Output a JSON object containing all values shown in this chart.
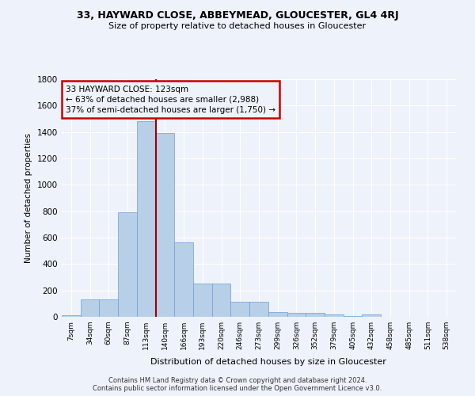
{
  "title1": "33, HAYWARD CLOSE, ABBEYMEAD, GLOUCESTER, GL4 4RJ",
  "title2": "Size of property relative to detached houses in Gloucester",
  "xlabel": "Distribution of detached houses by size in Gloucester",
  "ylabel": "Number of detached properties",
  "bins": [
    "7sqm",
    "34sqm",
    "60sqm",
    "87sqm",
    "113sqm",
    "140sqm",
    "166sqm",
    "193sqm",
    "220sqm",
    "246sqm",
    "273sqm",
    "299sqm",
    "326sqm",
    "352sqm",
    "379sqm",
    "405sqm",
    "432sqm",
    "458sqm",
    "485sqm",
    "511sqm",
    "538sqm"
  ],
  "bar_heights": [
    10,
    130,
    130,
    790,
    1480,
    1390,
    565,
    250,
    250,
    115,
    115,
    35,
    30,
    30,
    20,
    5,
    20,
    0,
    0,
    0,
    0
  ],
  "bar_color": "#b8cfe8",
  "bar_edge_color": "#6a9fd8",
  "vline_color": "#990000",
  "annotation_line1": "33 HAYWARD CLOSE: 123sqm",
  "annotation_line2": "← 63% of detached houses are smaller (2,988)",
  "annotation_line3": "37% of semi-detached houses are larger (1,750) →",
  "annotation_box_color": "#cc0000",
  "ylim": [
    0,
    1800
  ],
  "yticks": [
    0,
    200,
    400,
    600,
    800,
    1000,
    1200,
    1400,
    1600,
    1800
  ],
  "footer1": "Contains HM Land Registry data © Crown copyright and database right 2024.",
  "footer2": "Contains public sector information licensed under the Open Government Licence v3.0.",
  "bg_color": "#eef2fa",
  "grid_color": "#ffffff",
  "vline_xindex": 4.5
}
